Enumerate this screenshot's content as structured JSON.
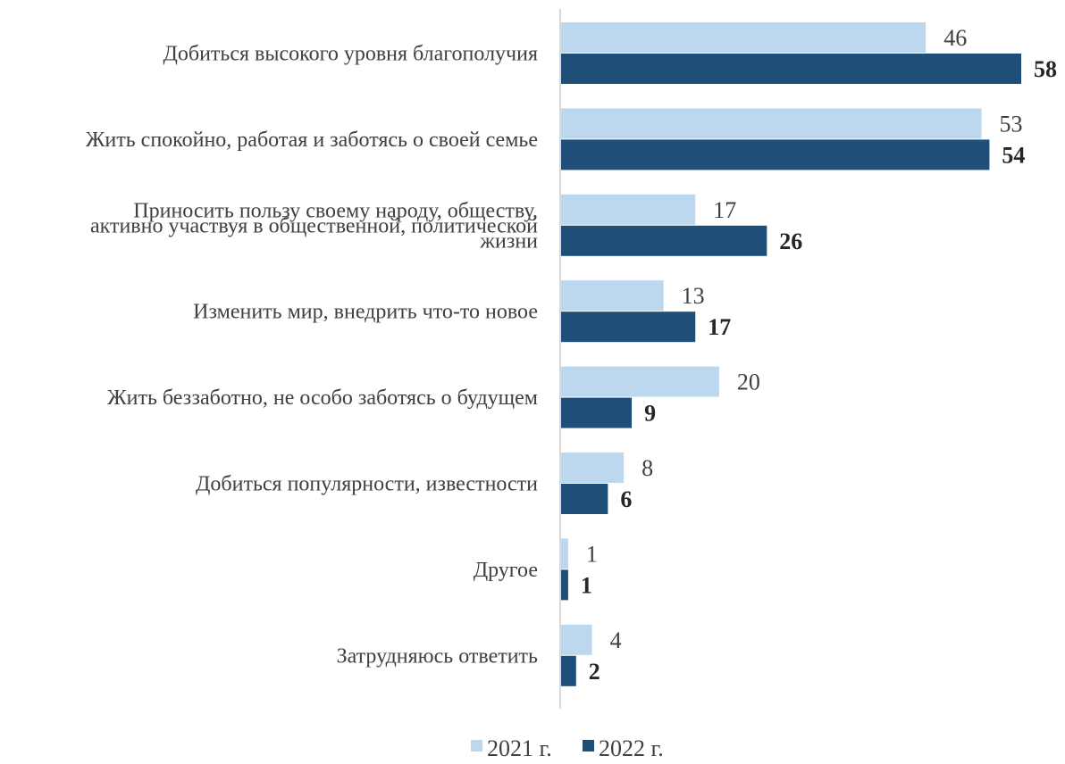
{
  "chart_data": {
    "type": "bar",
    "orientation": "horizontal",
    "categories": [
      [
        "Добиться высокого уровня благополучия"
      ],
      [
        "Жить спокойно, работая и заботясь о своей семье"
      ],
      [
        "Приносить пользу своему народу, обществу,",
        "активно участвуя в общественной, политической",
        "жизни"
      ],
      [
        "Изменить мир, внедрить что-то новое"
      ],
      [
        "Жить беззаботно, не особо заботясь о будущем"
      ],
      [
        "Добиться популярности, известности"
      ],
      [
        "Другое"
      ],
      [
        "Затрудняюсь ответить"
      ]
    ],
    "series": [
      {
        "name": "2021 г.",
        "color": "#bdd7ee",
        "values": [
          46,
          53,
          17,
          13,
          20,
          8,
          1,
          4
        ]
      },
      {
        "name": "2022 г.",
        "color": "#1f4e79",
        "values": [
          58,
          54,
          26,
          17,
          9,
          6,
          1,
          2
        ]
      }
    ],
    "xlim": [
      0,
      58
    ],
    "grid": false,
    "legend_position": "bottom",
    "data_labels": true
  }
}
